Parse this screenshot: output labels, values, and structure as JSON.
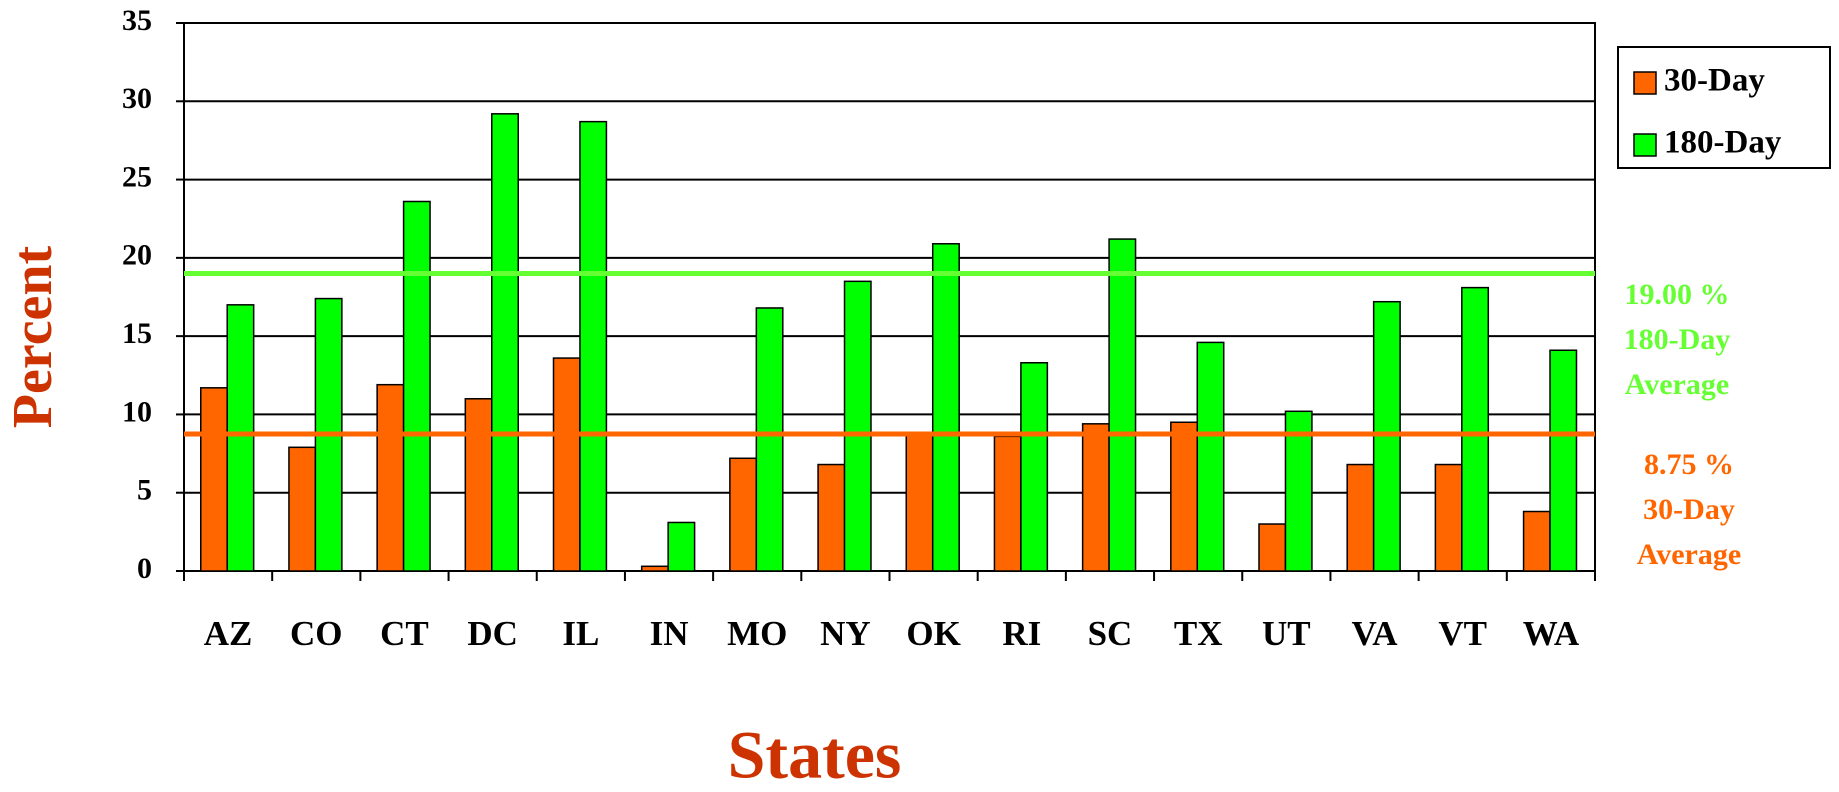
{
  "chart_data": {
    "type": "bar",
    "x_label": "States",
    "y_label": "Percent",
    "categories": [
      "AZ",
      "CO",
      "CT",
      "DC",
      "IL",
      "IN",
      "MO",
      "NY",
      "OK",
      "RI",
      "SC",
      "TX",
      "UT",
      "VA",
      "VT",
      "WA"
    ],
    "series": [
      {
        "name": "30-Day",
        "color": "#ff6600",
        "values": [
          11.7,
          7.9,
          11.9,
          11.0,
          13.6,
          0.3,
          7.2,
          6.8,
          8.8,
          8.6,
          9.4,
          9.5,
          3.0,
          6.8,
          6.8,
          3.8
        ]
      },
      {
        "name": "180-Day",
        "color": "#00ff00",
        "values": [
          17.0,
          17.4,
          23.6,
          29.2,
          28.7,
          3.1,
          16.8,
          18.5,
          20.9,
          13.3,
          21.2,
          14.6,
          10.2,
          17.2,
          18.1,
          14.1
        ]
      }
    ],
    "reference_lines": [
      {
        "value": 19,
        "value_label": "19.00 %",
        "label_lines": [
          "180-Day",
          "Average"
        ],
        "color": "#66ff33"
      },
      {
        "value": 8.75,
        "value_label": "8.75 %",
        "label_lines": [
          "30-Day",
          "Average"
        ],
        "color": "#ff6600"
      }
    ],
    "ylim": [
      0,
      35
    ],
    "yticks": [
      0,
      5,
      10,
      15,
      20,
      25,
      30,
      35
    ],
    "grid": true,
    "legend": "top-right",
    "axis_title_color": "#cc3300"
  }
}
